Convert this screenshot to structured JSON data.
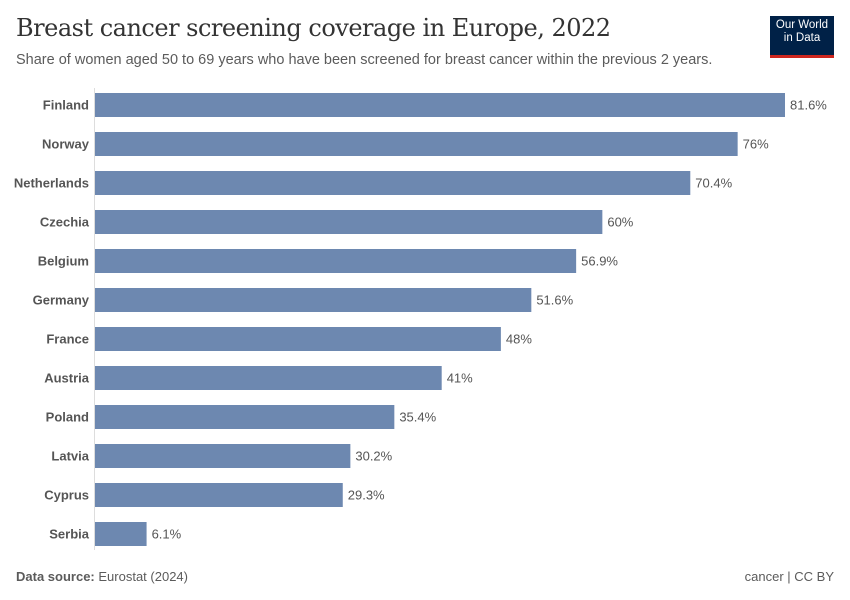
{
  "chart_data": {
    "type": "bar",
    "orientation": "horizontal",
    "title": "Breast cancer screening coverage in Europe, 2022",
    "subtitle": "Share of women aged 50 to 69 years who have been screened for breast cancer within the previous 2 years.",
    "categories": [
      "Finland",
      "Norway",
      "Netherlands",
      "Czechia",
      "Belgium",
      "Germany",
      "France",
      "Austria",
      "Poland",
      "Latvia",
      "Cyprus",
      "Serbia"
    ],
    "values": [
      81.6,
      76,
      70.4,
      60,
      56.9,
      51.6,
      48,
      41,
      35.4,
      30.2,
      29.3,
      6.1
    ],
    "data_labels": [
      "81.6%",
      "76%",
      "70.4%",
      "60%",
      "56.9%",
      "51.6%",
      "48%",
      "41%",
      "35.4%",
      "30.2%",
      "29.3%",
      "6.1%"
    ],
    "unit": "%",
    "xlim": [
      0,
      81.6
    ],
    "grid": false,
    "bar_color": "#6d88b0"
  },
  "logo": {
    "line1": "Our World",
    "line2": "in Data",
    "bg": "#002147",
    "accent": "#ce261e"
  },
  "footer": {
    "source_label": "Data source:",
    "source": "Eurostat (2024)",
    "right": "cancer | CC BY"
  }
}
